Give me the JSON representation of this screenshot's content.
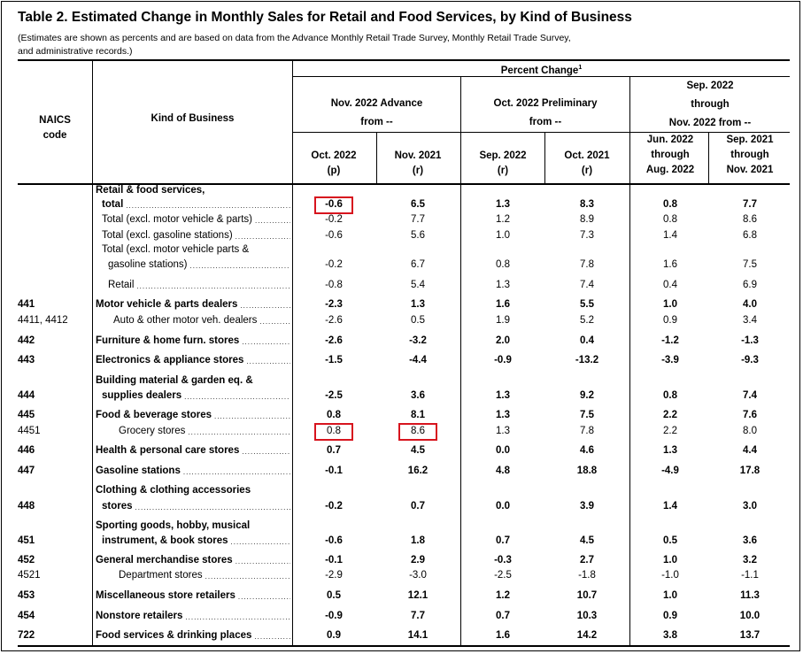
{
  "title": "Table 2.  Estimated Change in Monthly Sales for Retail and Food Services, by Kind of Business",
  "subtitle_line1": "(Estimates are shown as percents and are based on data from the Advance Monthly Retail Trade Survey,  Monthly Retail Trade Survey,",
  "subtitle_line2": "and administrative records.)",
  "headers": {
    "naics_1": "NAICS",
    "naics_2": "code",
    "kind": "Kind of Business",
    "percent_change": "Percent Change",
    "footnote": "1",
    "group1_l1": "Nov. 2022 Advance",
    "group1_l2": "from --",
    "group2_l1": "Oct. 2022 Preliminary",
    "group2_l2": "from --",
    "group3_l1": "Sep. 2022",
    "group3_l2": "through",
    "group3_l3": "Nov. 2022 from --",
    "cols": [
      {
        "l1": "Oct. 2022",
        "l2": "(p)",
        "l3": ""
      },
      {
        "l1": "Nov. 2021",
        "l2": "(r)",
        "l3": ""
      },
      {
        "l1": "Sep. 2022",
        "l2": "(r)",
        "l3": ""
      },
      {
        "l1": "Oct. 2021",
        "l2": "(r)",
        "l3": ""
      },
      {
        "l1": "Jun. 2022",
        "l2": "through",
        "l3": "Aug. 2022"
      },
      {
        "l1": "Sep. 2021",
        "l2": "through",
        "l3": "Nov. 2021"
      }
    ]
  },
  "rows": [
    {
      "code": "",
      "pre": "Retail & food services,",
      "label": "total",
      "bold": true,
      "indent": 1,
      "values": [
        "-0.6",
        "6.5",
        "1.3",
        "8.3",
        "0.8",
        "7.7"
      ],
      "highlight": [
        0
      ]
    },
    {
      "code": "",
      "label": "Total (excl. motor vehicle & parts)",
      "bold": false,
      "indent": 1,
      "values": [
        "-0.2",
        "7.7",
        "1.2",
        "8.9",
        "0.8",
        "8.6"
      ]
    },
    {
      "code": "",
      "label": "Total (excl. gasoline stations)",
      "bold": false,
      "indent": 1,
      "values": [
        "-0.6",
        "5.6",
        "1.0",
        "7.3",
        "1.4",
        "6.8"
      ]
    },
    {
      "code": "",
      "pre": "Total (excl. motor vehicle parts &",
      "label": "gasoline stations)",
      "bold": false,
      "indent": 2,
      "pre_indent": 1,
      "values": [
        "-0.2",
        "6.7",
        "0.8",
        "7.8",
        "1.6",
        "7.5"
      ]
    },
    {
      "code": "",
      "label": "Retail",
      "bold": false,
      "indent": 2,
      "values": [
        "-0.8",
        "5.4",
        "1.3",
        "7.4",
        "0.4",
        "6.9"
      ]
    },
    {
      "code": "441",
      "label": "Motor vehicle & parts dealers",
      "bold": true,
      "indent": 0,
      "values": [
        "-2.3",
        "1.3",
        "1.6",
        "5.5",
        "1.0",
        "4.0"
      ]
    },
    {
      "code": "4411, 4412",
      "label": "Auto & other motor veh. dealers",
      "bold": false,
      "indent": 3,
      "values": [
        "-2.6",
        "0.5",
        "1.9",
        "5.2",
        "0.9",
        "3.4"
      ]
    },
    {
      "code": "442",
      "label": "Furniture & home furn. stores",
      "bold": true,
      "indent": 0,
      "values": [
        "-2.6",
        "-3.2",
        "2.0",
        "0.4",
        "-1.2",
        "-1.3"
      ]
    },
    {
      "code": "443",
      "label": "Electronics & appliance stores",
      "bold": true,
      "indent": 0,
      "values": [
        "-1.5",
        "-4.4",
        "-0.9",
        "-13.2",
        "-3.9",
        "-9.3"
      ]
    },
    {
      "code": "444",
      "pre": "Building material & garden eq. &",
      "label": "supplies dealers",
      "bold": true,
      "indent": 1,
      "pre_indent": 0,
      "values": [
        "-2.5",
        "3.6",
        "1.3",
        "9.2",
        "0.8",
        "7.4"
      ]
    },
    {
      "code": "445",
      "label": "Food & beverage stores",
      "bold": true,
      "indent": 0,
      "values": [
        "0.8",
        "8.1",
        "1.3",
        "7.5",
        "2.2",
        "7.6"
      ]
    },
    {
      "code": "4451",
      "label": "Grocery stores",
      "bold": false,
      "indent": 4,
      "values": [
        "0.8",
        "8.6",
        "1.3",
        "7.8",
        "2.2",
        "8.0"
      ],
      "highlight": [
        0,
        1
      ]
    },
    {
      "code": "446",
      "label": "Health & personal care stores",
      "bold": true,
      "indent": 0,
      "values": [
        "0.7",
        "4.5",
        "0.0",
        "4.6",
        "1.3",
        "4.4"
      ]
    },
    {
      "code": "447",
      "label": "Gasoline stations",
      "bold": true,
      "indent": 0,
      "values": [
        "-0.1",
        "16.2",
        "4.8",
        "18.8",
        "-4.9",
        "17.8"
      ]
    },
    {
      "code": "448",
      "pre": "Clothing & clothing accessories",
      "label": "stores",
      "bold": true,
      "indent": 1,
      "pre_indent": 0,
      "values": [
        "-0.2",
        "0.7",
        "0.0",
        "3.9",
        "1.4",
        "3.0"
      ]
    },
    {
      "code": "451",
      "pre": "Sporting goods, hobby, musical",
      "label": "instrument, & book stores",
      "bold": true,
      "indent": 1,
      "pre_indent": 0,
      "values": [
        "-0.6",
        "1.8",
        "0.7",
        "4.5",
        "0.5",
        "3.6"
      ]
    },
    {
      "code": "452",
      "label": "General merchandise stores",
      "bold": true,
      "indent": 0,
      "values": [
        "-0.1",
        "2.9",
        "-0.3",
        "2.7",
        "1.0",
        "3.2"
      ]
    },
    {
      "code": "4521",
      "label": "Department stores",
      "bold": false,
      "indent": 4,
      "values": [
        "-2.9",
        "-3.0",
        "-2.5",
        "-1.8",
        "-1.0",
        "-1.1"
      ]
    },
    {
      "code": "453",
      "label": "Miscellaneous store retailers",
      "bold": true,
      "indent": 0,
      "values": [
        "0.5",
        "12.1",
        "1.2",
        "10.7",
        "1.0",
        "11.3"
      ]
    },
    {
      "code": "454",
      "label": "Nonstore retailers",
      "bold": true,
      "indent": 0,
      "values": [
        "-0.9",
        "7.7",
        "0.7",
        "10.3",
        "0.9",
        "10.0"
      ]
    },
    {
      "code": "722",
      "label": "Food services & drinking places",
      "bold": true,
      "indent": 0,
      "values": [
        "0.9",
        "14.1",
        "1.6",
        "14.2",
        "3.8",
        "13.7"
      ]
    }
  ],
  "highlight_color": "#d7141e"
}
